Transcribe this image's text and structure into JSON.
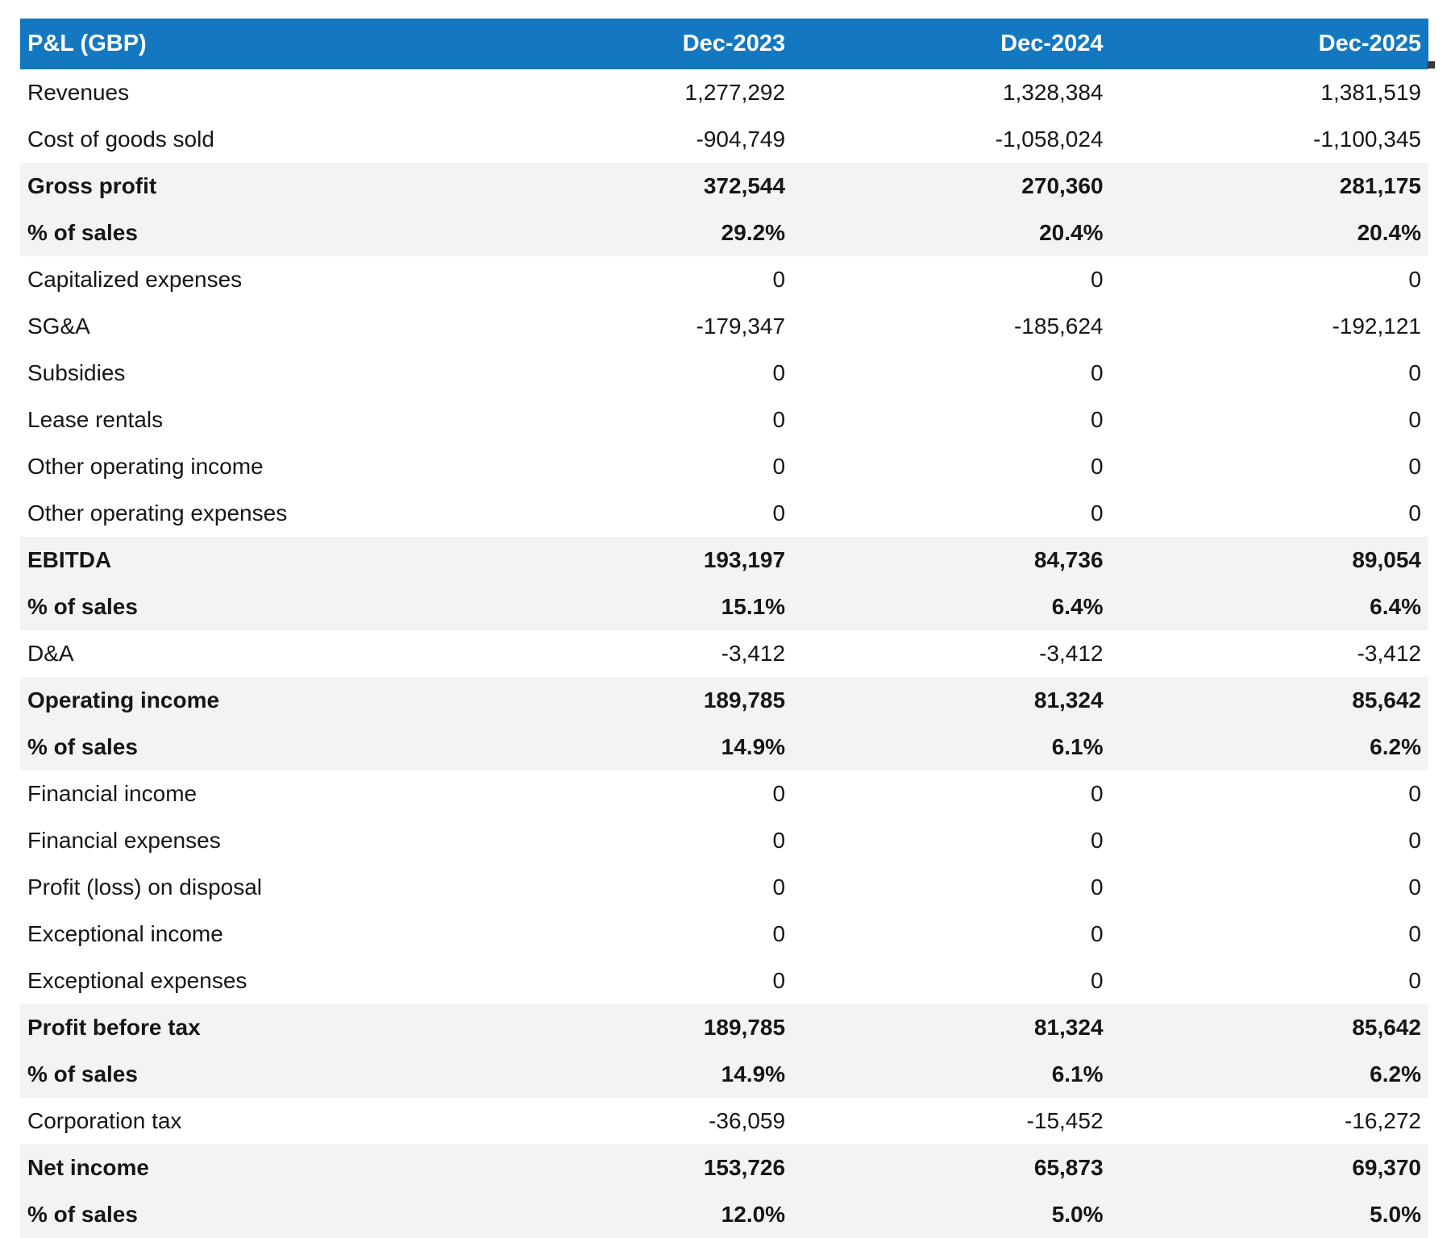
{
  "table": {
    "title": "P&L (GBP)",
    "columns": [
      "Dec-2023",
      "Dec-2024",
      "Dec-2025"
    ],
    "rows": [
      {
        "label": "Revenues",
        "values": [
          "1,277,292",
          "1,328,384",
          "1,381,519"
        ],
        "emphasis": false
      },
      {
        "label": "Cost of goods sold",
        "values": [
          "-904,749",
          "-1,058,024",
          "-1,100,345"
        ],
        "emphasis": false
      },
      {
        "label": "Gross profit",
        "values": [
          "372,544",
          "270,360",
          "281,175"
        ],
        "emphasis": true
      },
      {
        "label": "% of sales",
        "values": [
          "29.2%",
          "20.4%",
          "20.4%"
        ],
        "emphasis": true
      },
      {
        "label": "Capitalized expenses",
        "values": [
          "0",
          "0",
          "0"
        ],
        "emphasis": false
      },
      {
        "label": "SG&A",
        "values": [
          "-179,347",
          "-185,624",
          "-192,121"
        ],
        "emphasis": false
      },
      {
        "label": "Subsidies",
        "values": [
          "0",
          "0",
          "0"
        ],
        "emphasis": false
      },
      {
        "label": "Lease rentals",
        "values": [
          "0",
          "0",
          "0"
        ],
        "emphasis": false
      },
      {
        "label": "Other operating income",
        "values": [
          "0",
          "0",
          "0"
        ],
        "emphasis": false
      },
      {
        "label": "Other operating expenses",
        "values": [
          "0",
          "0",
          "0"
        ],
        "emphasis": false
      },
      {
        "label": "EBITDA",
        "values": [
          "193,197",
          "84,736",
          "89,054"
        ],
        "emphasis": true
      },
      {
        "label": "% of sales",
        "values": [
          "15.1%",
          "6.4%",
          "6.4%"
        ],
        "emphasis": true
      },
      {
        "label": "D&A",
        "values": [
          "-3,412",
          "-3,412",
          "-3,412"
        ],
        "emphasis": false
      },
      {
        "label": "Operating income",
        "values": [
          "189,785",
          "81,324",
          "85,642"
        ],
        "emphasis": true
      },
      {
        "label": "% of sales",
        "values": [
          "14.9%",
          "6.1%",
          "6.2%"
        ],
        "emphasis": true
      },
      {
        "label": "Financial income",
        "values": [
          "0",
          "0",
          "0"
        ],
        "emphasis": false
      },
      {
        "label": "Financial expenses",
        "values": [
          "0",
          "0",
          "0"
        ],
        "emphasis": false
      },
      {
        "label": "Profit (loss) on disposal",
        "values": [
          "0",
          "0",
          "0"
        ],
        "emphasis": false
      },
      {
        "label": "Exceptional income",
        "values": [
          "0",
          "0",
          "0"
        ],
        "emphasis": false
      },
      {
        "label": "Exceptional expenses",
        "values": [
          "0",
          "0",
          "0"
        ],
        "emphasis": false
      },
      {
        "label": "Profit before tax",
        "values": [
          "189,785",
          "81,324",
          "85,642"
        ],
        "emphasis": true
      },
      {
        "label": "% of sales",
        "values": [
          "14.9%",
          "6.1%",
          "6.2%"
        ],
        "emphasis": true
      },
      {
        "label": "Corporation tax",
        "values": [
          "-36,059",
          "-15,452",
          "-16,272"
        ],
        "emphasis": false
      },
      {
        "label": "Net income",
        "values": [
          "153,726",
          "65,873",
          "69,370"
        ],
        "emphasis": true
      },
      {
        "label": "% of sales",
        "values": [
          "12.0%",
          "5.0%",
          "5.0%"
        ],
        "emphasis": true
      }
    ]
  },
  "chart_data": {
    "type": "table",
    "title": "P&L (GBP)",
    "categories": [
      "Dec-2023",
      "Dec-2024",
      "Dec-2025"
    ],
    "rows": [
      {
        "label": "Revenues",
        "unit": "GBP",
        "values": [
          1277292,
          1328384,
          1381519
        ]
      },
      {
        "label": "Cost of goods sold",
        "unit": "GBP",
        "values": [
          -904749,
          -1058024,
          -1100345
        ]
      },
      {
        "label": "Gross profit",
        "unit": "GBP",
        "values": [
          372544,
          270360,
          281175
        ]
      },
      {
        "label": "Gross profit % of sales",
        "unit": "%",
        "values": [
          29.2,
          20.4,
          20.4
        ]
      },
      {
        "label": "Capitalized expenses",
        "unit": "GBP",
        "values": [
          0,
          0,
          0
        ]
      },
      {
        "label": "SG&A",
        "unit": "GBP",
        "values": [
          -179347,
          -185624,
          -192121
        ]
      },
      {
        "label": "Subsidies",
        "unit": "GBP",
        "values": [
          0,
          0,
          0
        ]
      },
      {
        "label": "Lease rentals",
        "unit": "GBP",
        "values": [
          0,
          0,
          0
        ]
      },
      {
        "label": "Other operating income",
        "unit": "GBP",
        "values": [
          0,
          0,
          0
        ]
      },
      {
        "label": "Other operating expenses",
        "unit": "GBP",
        "values": [
          0,
          0,
          0
        ]
      },
      {
        "label": "EBITDA",
        "unit": "GBP",
        "values": [
          193197,
          84736,
          89054
        ]
      },
      {
        "label": "EBITDA % of sales",
        "unit": "%",
        "values": [
          15.1,
          6.4,
          6.4
        ]
      },
      {
        "label": "D&A",
        "unit": "GBP",
        "values": [
          -3412,
          -3412,
          -3412
        ]
      },
      {
        "label": "Operating income",
        "unit": "GBP",
        "values": [
          189785,
          81324,
          85642
        ]
      },
      {
        "label": "Operating income % of sales",
        "unit": "%",
        "values": [
          14.9,
          6.1,
          6.2
        ]
      },
      {
        "label": "Financial income",
        "unit": "GBP",
        "values": [
          0,
          0,
          0
        ]
      },
      {
        "label": "Financial expenses",
        "unit": "GBP",
        "values": [
          0,
          0,
          0
        ]
      },
      {
        "label": "Profit (loss) on disposal",
        "unit": "GBP",
        "values": [
          0,
          0,
          0
        ]
      },
      {
        "label": "Exceptional income",
        "unit": "GBP",
        "values": [
          0,
          0,
          0
        ]
      },
      {
        "label": "Exceptional expenses",
        "unit": "GBP",
        "values": [
          0,
          0,
          0
        ]
      },
      {
        "label": "Profit before tax",
        "unit": "GBP",
        "values": [
          189785,
          81324,
          85642
        ]
      },
      {
        "label": "Profit before tax % of sales",
        "unit": "%",
        "values": [
          14.9,
          6.1,
          6.2
        ]
      },
      {
        "label": "Corporation tax",
        "unit": "GBP",
        "values": [
          -36059,
          -15452,
          -16272
        ]
      },
      {
        "label": "Net income",
        "unit": "GBP",
        "values": [
          153726,
          65873,
          69370
        ]
      },
      {
        "label": "Net income % of sales",
        "unit": "%",
        "values": [
          12.0,
          5.0,
          5.0
        ]
      }
    ]
  },
  "colors": {
    "header_bg": "#1478c0",
    "header_text": "#ffffff",
    "emphasis_row_bg": "#f4f3f3",
    "body_text": "#161616",
    "page_bg": "#ffffff"
  }
}
